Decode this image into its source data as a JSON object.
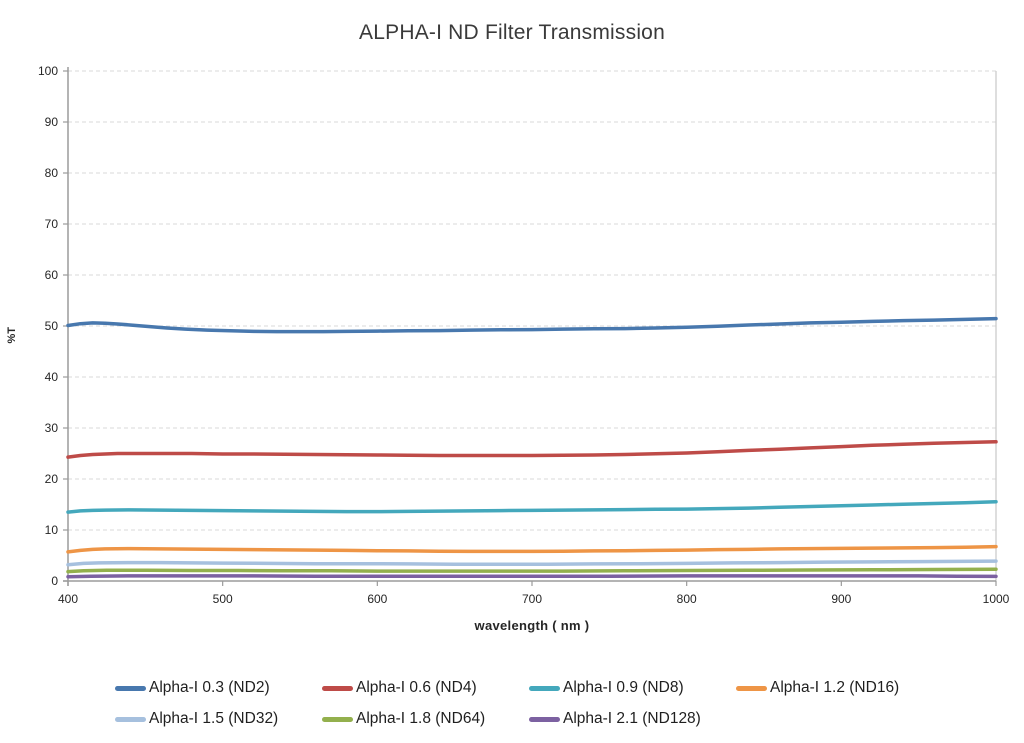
{
  "title": "ALPHA-I ND Filter Transmission",
  "chart_data": {
    "type": "line",
    "title": "ALPHA-I ND Filter Transmission",
    "xlabel": "wavelength ( nm )",
    "ylabel": "%T",
    "xlim": [
      400,
      1000
    ],
    "ylim": [
      0,
      100
    ],
    "x_ticks": [
      400,
      500,
      600,
      700,
      800,
      900,
      1000
    ],
    "y_ticks": [
      0,
      10,
      20,
      30,
      40,
      50,
      60,
      70,
      80,
      90,
      100
    ],
    "grid": "horizontal-dashed",
    "grid_color": "#D9D9D9",
    "axis_color": "#9B9B9B",
    "plot_right_border_color": "#C9C9C9",
    "legend_position": "bottom",
    "series": [
      {
        "name": "Alpha-I 0.3 (ND2)",
        "color": "#4878AE",
        "points": [
          [
            400,
            50.1
          ],
          [
            408,
            50.45
          ],
          [
            416,
            50.6
          ],
          [
            424,
            50.55
          ],
          [
            432,
            50.4
          ],
          [
            442,
            50.15
          ],
          [
            452,
            49.9
          ],
          [
            464,
            49.6
          ],
          [
            476,
            49.4
          ],
          [
            490,
            49.2
          ],
          [
            505,
            49.05
          ],
          [
            520,
            48.95
          ],
          [
            535,
            48.9
          ],
          [
            550,
            48.9
          ],
          [
            565,
            48.9
          ],
          [
            580,
            48.95
          ],
          [
            600,
            49.0
          ],
          [
            620,
            49.05
          ],
          [
            640,
            49.1
          ],
          [
            660,
            49.2
          ],
          [
            680,
            49.25
          ],
          [
            700,
            49.3
          ],
          [
            720,
            49.4
          ],
          [
            740,
            49.45
          ],
          [
            760,
            49.5
          ],
          [
            780,
            49.6
          ],
          [
            800,
            49.75
          ],
          [
            820,
            49.95
          ],
          [
            840,
            50.2
          ],
          [
            860,
            50.4
          ],
          [
            880,
            50.6
          ],
          [
            900,
            50.75
          ],
          [
            920,
            50.9
          ],
          [
            940,
            51.05
          ],
          [
            960,
            51.15
          ],
          [
            980,
            51.3
          ],
          [
            1000,
            51.45
          ]
        ]
      },
      {
        "name": "Alpha-I 0.6 (ND4)",
        "color": "#BE4B48",
        "points": [
          [
            400,
            24.3
          ],
          [
            408,
            24.6
          ],
          [
            416,
            24.8
          ],
          [
            424,
            24.9
          ],
          [
            432,
            25.0
          ],
          [
            445,
            25.0
          ],
          [
            460,
            25.0
          ],
          [
            480,
            25.0
          ],
          [
            500,
            24.9
          ],
          [
            520,
            24.9
          ],
          [
            540,
            24.85
          ],
          [
            560,
            24.8
          ],
          [
            580,
            24.75
          ],
          [
            600,
            24.7
          ],
          [
            620,
            24.65
          ],
          [
            640,
            24.6
          ],
          [
            660,
            24.6
          ],
          [
            680,
            24.6
          ],
          [
            700,
            24.6
          ],
          [
            720,
            24.65
          ],
          [
            740,
            24.7
          ],
          [
            760,
            24.8
          ],
          [
            780,
            24.95
          ],
          [
            800,
            25.1
          ],
          [
            820,
            25.35
          ],
          [
            840,
            25.6
          ],
          [
            860,
            25.85
          ],
          [
            880,
            26.1
          ],
          [
            900,
            26.35
          ],
          [
            920,
            26.6
          ],
          [
            940,
            26.8
          ],
          [
            960,
            27.0
          ],
          [
            980,
            27.15
          ],
          [
            1000,
            27.3
          ]
        ]
      },
      {
        "name": "Alpha-I 0.9 (ND8)",
        "color": "#44A8BC",
        "points": [
          [
            400,
            13.5
          ],
          [
            408,
            13.75
          ],
          [
            416,
            13.85
          ],
          [
            424,
            13.9
          ],
          [
            440,
            13.95
          ],
          [
            460,
            13.9
          ],
          [
            480,
            13.85
          ],
          [
            500,
            13.8
          ],
          [
            520,
            13.75
          ],
          [
            540,
            13.7
          ],
          [
            560,
            13.65
          ],
          [
            580,
            13.6
          ],
          [
            600,
            13.6
          ],
          [
            620,
            13.65
          ],
          [
            640,
            13.7
          ],
          [
            660,
            13.75
          ],
          [
            680,
            13.8
          ],
          [
            700,
            13.85
          ],
          [
            720,
            13.9
          ],
          [
            740,
            13.95
          ],
          [
            760,
            14.0
          ],
          [
            780,
            14.05
          ],
          [
            800,
            14.1
          ],
          [
            820,
            14.2
          ],
          [
            840,
            14.3
          ],
          [
            860,
            14.45
          ],
          [
            880,
            14.6
          ],
          [
            900,
            14.75
          ],
          [
            920,
            14.9
          ],
          [
            940,
            15.05
          ],
          [
            960,
            15.2
          ],
          [
            980,
            15.35
          ],
          [
            1000,
            15.55
          ]
        ]
      },
      {
        "name": "Alpha-I 1.2 (ND16)",
        "color": "#EE9546",
        "points": [
          [
            400,
            5.7
          ],
          [
            408,
            6.0
          ],
          [
            416,
            6.2
          ],
          [
            424,
            6.3
          ],
          [
            440,
            6.35
          ],
          [
            460,
            6.3
          ],
          [
            480,
            6.25
          ],
          [
            500,
            6.2
          ],
          [
            520,
            6.15
          ],
          [
            540,
            6.1
          ],
          [
            560,
            6.05
          ],
          [
            580,
            6.0
          ],
          [
            600,
            5.95
          ],
          [
            620,
            5.9
          ],
          [
            640,
            5.85
          ],
          [
            660,
            5.8
          ],
          [
            680,
            5.8
          ],
          [
            700,
            5.8
          ],
          [
            720,
            5.85
          ],
          [
            740,
            5.9
          ],
          [
            760,
            5.95
          ],
          [
            780,
            6.0
          ],
          [
            800,
            6.05
          ],
          [
            820,
            6.15
          ],
          [
            840,
            6.2
          ],
          [
            860,
            6.3
          ],
          [
            880,
            6.35
          ],
          [
            900,
            6.4
          ],
          [
            920,
            6.45
          ],
          [
            940,
            6.5
          ],
          [
            960,
            6.55
          ],
          [
            980,
            6.6
          ],
          [
            1000,
            6.75
          ]
        ]
      },
      {
        "name": "Alpha-I 1.5 (ND32)",
        "color": "#A6C0DE",
        "points": [
          [
            400,
            3.2
          ],
          [
            410,
            3.45
          ],
          [
            420,
            3.55
          ],
          [
            440,
            3.6
          ],
          [
            460,
            3.6
          ],
          [
            480,
            3.55
          ],
          [
            500,
            3.5
          ],
          [
            530,
            3.45
          ],
          [
            560,
            3.4
          ],
          [
            590,
            3.4
          ],
          [
            620,
            3.35
          ],
          [
            650,
            3.3
          ],
          [
            680,
            3.3
          ],
          [
            710,
            3.3
          ],
          [
            740,
            3.35
          ],
          [
            770,
            3.4
          ],
          [
            800,
            3.45
          ],
          [
            830,
            3.55
          ],
          [
            860,
            3.6
          ],
          [
            890,
            3.7
          ],
          [
            920,
            3.75
          ],
          [
            950,
            3.8
          ],
          [
            975,
            3.85
          ],
          [
            1000,
            3.9
          ]
        ]
      },
      {
        "name": "Alpha-I 1.8 (ND64)",
        "color": "#93B04D",
        "points": [
          [
            400,
            1.85
          ],
          [
            410,
            2.0
          ],
          [
            425,
            2.1
          ],
          [
            450,
            2.1
          ],
          [
            480,
            2.05
          ],
          [
            510,
            2.05
          ],
          [
            540,
            2.0
          ],
          [
            570,
            2.0
          ],
          [
            600,
            1.95
          ],
          [
            640,
            1.95
          ],
          [
            680,
            1.95
          ],
          [
            720,
            1.95
          ],
          [
            760,
            2.0
          ],
          [
            800,
            2.05
          ],
          [
            840,
            2.1
          ],
          [
            880,
            2.15
          ],
          [
            920,
            2.2
          ],
          [
            960,
            2.25
          ],
          [
            1000,
            2.3
          ]
        ]
      },
      {
        "name": "Alpha-I 2.1 (ND128)",
        "color": "#7C61A1",
        "points": [
          [
            400,
            0.85
          ],
          [
            415,
            0.95
          ],
          [
            440,
            1.0
          ],
          [
            480,
            1.0
          ],
          [
            520,
            1.0
          ],
          [
            560,
            0.95
          ],
          [
            600,
            0.95
          ],
          [
            650,
            0.95
          ],
          [
            700,
            0.95
          ],
          [
            750,
            0.95
          ],
          [
            800,
            1.0
          ],
          [
            850,
            1.0
          ],
          [
            900,
            1.0
          ],
          [
            950,
            1.0
          ],
          [
            975,
            0.95
          ],
          [
            1000,
            0.9
          ]
        ]
      }
    ]
  }
}
